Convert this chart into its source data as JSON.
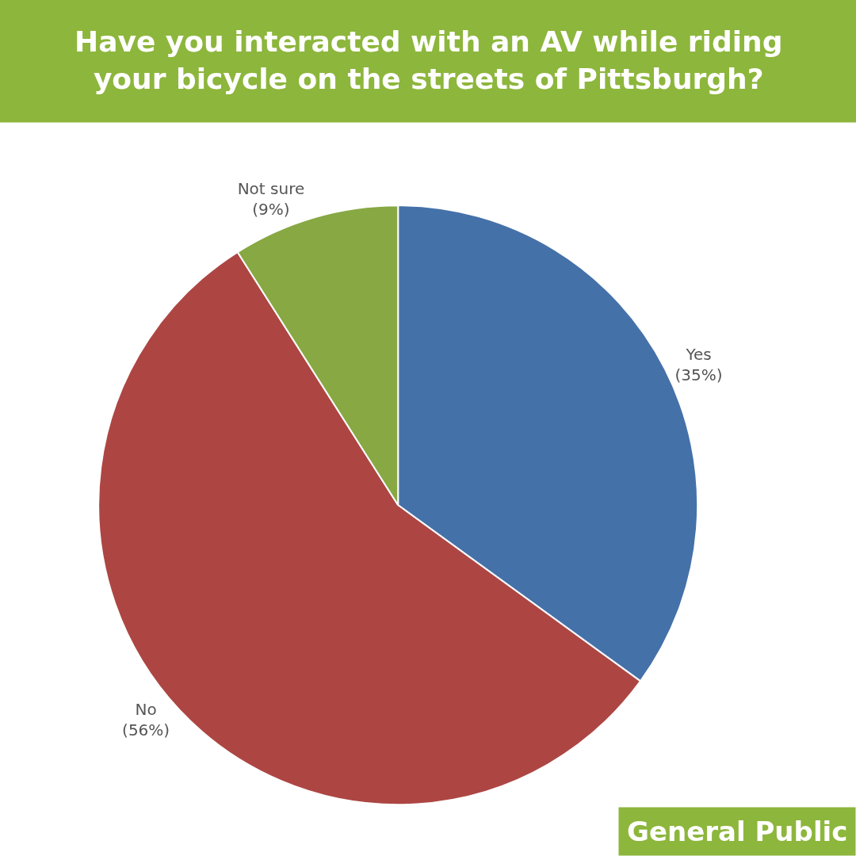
{
  "chart_data": {
    "type": "pie",
    "title": "Have you interacted with an AV while riding your bicycle on the streets of Pittsburgh?",
    "categories": [
      "Yes",
      "No",
      "Not sure"
    ],
    "values": [
      35,
      56,
      9
    ],
    "value_labels": [
      "(35%)",
      "(56%)",
      "(9%)"
    ],
    "colors": [
      "#4571a9",
      "#ad4643",
      "#87a843"
    ],
    "annotations": [
      "General Public"
    ],
    "legend": false
  }
}
